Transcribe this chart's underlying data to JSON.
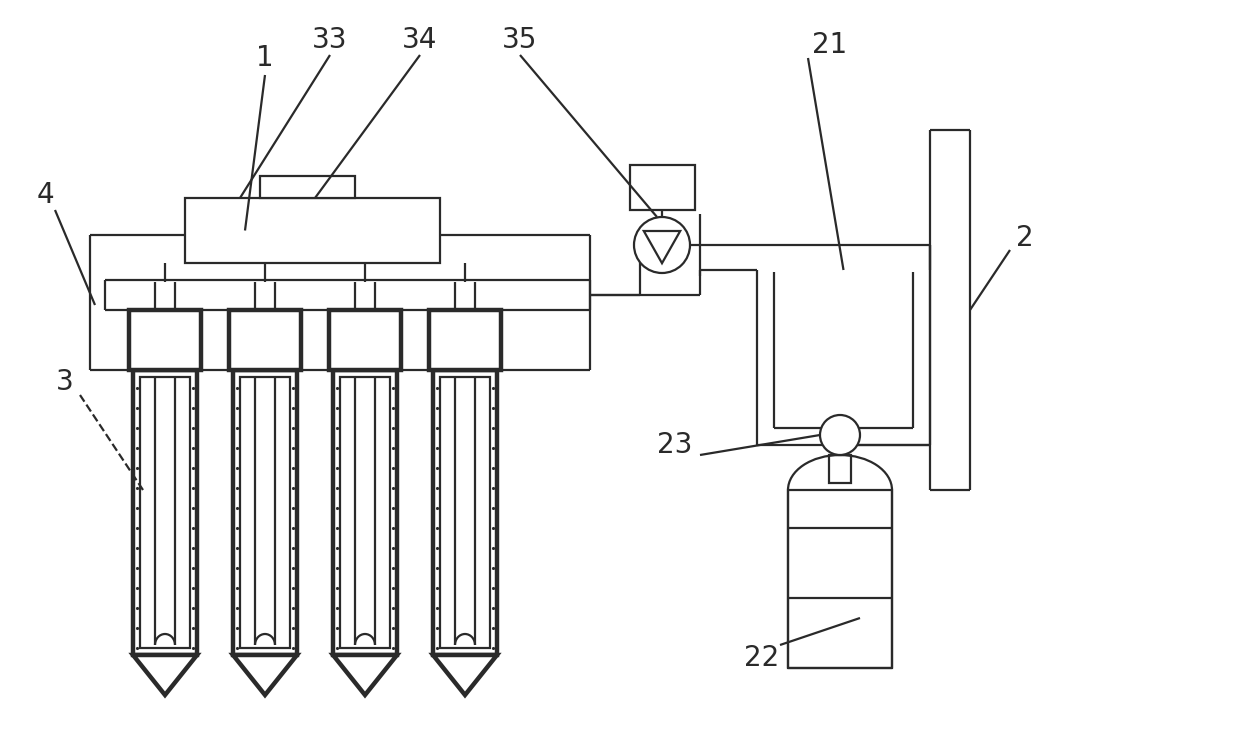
{
  "bg_color": "#ffffff",
  "line_color": "#2a2a2a",
  "lw": 1.6,
  "lw_thick": 3.2,
  "label_fontsize": 20,
  "fig_w": 12.4,
  "fig_h": 7.33,
  "dpi": 100
}
